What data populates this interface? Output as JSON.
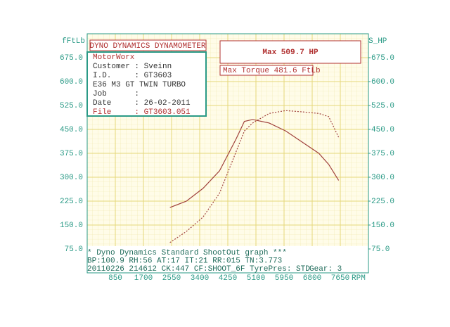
{
  "chart_data": {
    "type": "line",
    "title": "DYNO DYNAMICS DYNAMOMETER",
    "headline": "Max 509.7 HP",
    "subheadline": "Max Torque 481.6 FtLb",
    "y_label": "fFtLb",
    "y2_label": "S_HP",
    "x_label": "RPM",
    "info_box": [
      "MotorWorx",
      "Customer : Sveinn",
      "I.D.     : GT3603",
      "E36 M3 GT TWIN TURBO",
      "Job      :",
      "Date     : 26-02-2011",
      "File     : GT3603.051"
    ],
    "footer": [
      "* Dyno Dynamics Standard ShootOut graph ***",
      "BP:100.9 RH:56 AT:17 IT:21 RR:015 TN:3.773",
      "20110226 214612 CK:447 CF:SHOOT_6F TyrePres: STD"
    ],
    "gear": "Gear: 3",
    "x": [
      2500,
      3000,
      3500,
      4000,
      4500,
      4750,
      5000,
      5500,
      6000,
      6500,
      7000,
      7300,
      7600
    ],
    "series": [
      {
        "name": "Torque",
        "color": "#a0423c",
        "dash": false,
        "values": [
          205,
          225,
          265,
          320,
          420,
          475,
          481,
          470,
          445,
          410,
          375,
          340,
          290
        ]
      },
      {
        "name": "Power",
        "color": "#a0423c",
        "dash": true,
        "axis": "y2",
        "values": [
          95,
          130,
          175,
          250,
          380,
          445,
          470,
          500,
          509,
          505,
          500,
          490,
          425
        ]
      }
    ],
    "xlim": [
      0,
      8500
    ],
    "xticks": [
      850,
      1700,
      2550,
      3400,
      4250,
      5100,
      5950,
      6800,
      7650
    ],
    "ylim": [
      0,
      750
    ],
    "yticks": [
      {
        "value": 75,
        "label": "75.0"
      },
      {
        "value": 150,
        "label": "150.0"
      },
      {
        "value": 225,
        "label": "225.0"
      },
      {
        "value": 300,
        "label": "300.0"
      },
      {
        "value": 375,
        "label": "375.0"
      },
      {
        "value": 450,
        "label": "450.0"
      },
      {
        "value": 525,
        "label": "525.0"
      },
      {
        "value": 600,
        "label": "600.0"
      },
      {
        "value": 675,
        "label": "675.0"
      }
    ],
    "y2lim": [
      0,
      750
    ],
    "y2ticks": [
      {
        "value": 75,
        "label": "75.0"
      },
      {
        "value": 150,
        "label": "150.0"
      },
      {
        "value": 225,
        "label": "225.0"
      },
      {
        "value": 300,
        "label": "300.0"
      },
      {
        "value": 375,
        "label": "375.0"
      },
      {
        "value": 450,
        "label": "450.0"
      },
      {
        "value": 525,
        "label": "525.0"
      },
      {
        "value": 600,
        "label": "600.0"
      },
      {
        "value": 675,
        "label": "675.0"
      }
    ],
    "grid": true
  }
}
